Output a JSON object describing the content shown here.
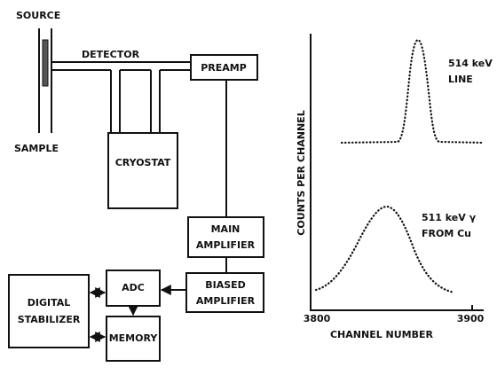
{
  "labels": {
    "source": "SOURCE",
    "sample": "SAMPLE",
    "detector": "DETECTOR"
  },
  "nodes": [
    {
      "lines": [
        "PREAMP"
      ]
    },
    {
      "lines": [
        "CRYOSTAT"
      ]
    },
    {
      "lines": [
        "MAIN",
        "AMPLIFIER"
      ]
    },
    {
      "lines": [
        "BIASED",
        "AMPLIFIER"
      ]
    },
    {
      "lines": [
        "ADC"
      ]
    },
    {
      "lines": [
        "DIGITAL",
        "STABILIZER"
      ]
    },
    {
      "lines": [
        "MEMORY"
      ]
    }
  ],
  "spectrum": {
    "y_label": "COUNTS PER CHANNEL",
    "x_label": "CHANNEL NUMBER",
    "x_tick_labels": [
      "3800",
      "3900"
    ],
    "annotations": [
      [
        "514 keV",
        "LINE"
      ],
      [
        "511 keV γ",
        "FROM Cu"
      ]
    ]
  }
}
